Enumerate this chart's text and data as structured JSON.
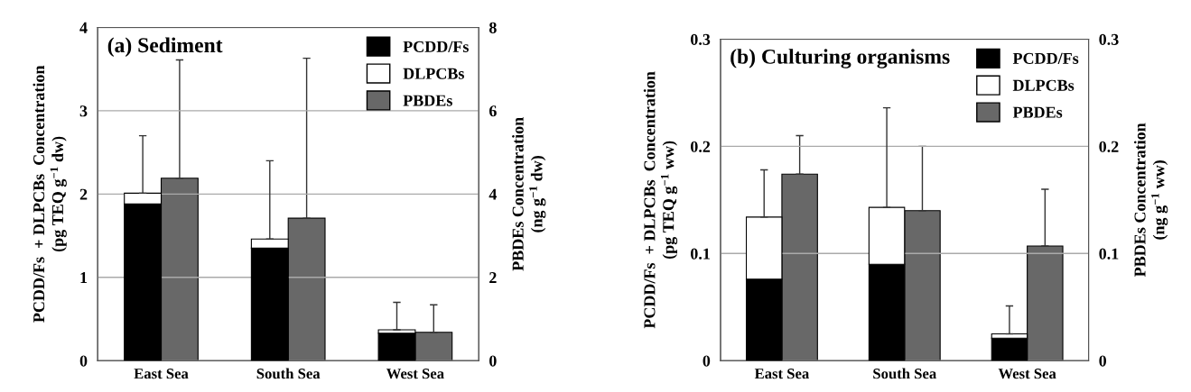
{
  "chart_data": [
    {
      "type": "bar",
      "title": "(a) Sediment",
      "categories": [
        "East Sea",
        "South Sea",
        "West Sea"
      ],
      "stacked": true,
      "grid": "y",
      "legend": "top right",
      "ylabel": "PCDD/Fs  + DLPCBs  Concentration\n(pg TEQ g$^{−1}$ dw)",
      "y2label": "PBDEs Concentration\n(ng g$^{−1}$ dw)",
      "ylim": [
        0,
        4
      ],
      "yticks": [
        0,
        1,
        2,
        3,
        4
      ],
      "y2lim": [
        0,
        8
      ],
      "y2ticks": [
        0,
        2,
        4,
        6,
        8
      ],
      "series": [
        {
          "name": "PCDD/Fs",
          "color": "#000000",
          "values": [
            1.88,
            1.35,
            0.33
          ]
        },
        {
          "name": "DLPCBs",
          "color": "#ffffff",
          "values": [
            0.13,
            0.11,
            0.04
          ],
          "errors": [
            [
              2.01,
              2.7
            ],
            [
              1.46,
              2.4
            ],
            [
              0.37,
              0.7
            ]
          ]
        },
        {
          "name": "PBDEs",
          "color": "#686868",
          "axis": "y2",
          "values": [
            4.38,
            3.42,
            0.68
          ],
          "errors": [
            [
              4.38,
              7.22
            ],
            [
              3.42,
              7.26
            ],
            [
              0.68,
              1.34
            ]
          ]
        }
      ]
    },
    {
      "type": "bar",
      "title": "(b) Culturing organisms",
      "categories": [
        "East Sea",
        "South Sea",
        "West Sea"
      ],
      "stacked": true,
      "grid": "y",
      "legend": "top right",
      "ylabel": "PCDD/Fs  + DLPCBs  Concentration\n(pg TEQ g$^{−1}$ ww)",
      "y2label": "PBDEs Concentration\n(ng g$^{−1}$ ww)",
      "ylim": [
        0,
        0.3
      ],
      "yticks": [
        0,
        0.1,
        0.2,
        0.3
      ],
      "y2lim": [
        0,
        0.3
      ],
      "y2ticks": [
        0,
        0.1,
        0.2,
        0.3
      ],
      "series": [
        {
          "name": "PCDD/Fs",
          "color": "#000000",
          "values": [
            0.076,
            0.09,
            0.021
          ]
        },
        {
          "name": "DLPCBs",
          "color": "#ffffff",
          "values": [
            0.058,
            0.053,
            0.004
          ],
          "errors": [
            [
              0.134,
              0.178
            ],
            [
              0.143,
              0.236
            ],
            [
              0.025,
              0.051
            ]
          ]
        },
        {
          "name": "PBDEs",
          "color": "#686868",
          "axis": "y2",
          "values": [
            0.174,
            0.14,
            0.107
          ],
          "errors": [
            [
              0.174,
              0.21
            ],
            [
              0.14,
              0.2
            ],
            [
              0.107,
              0.16
            ]
          ]
        }
      ]
    }
  ]
}
